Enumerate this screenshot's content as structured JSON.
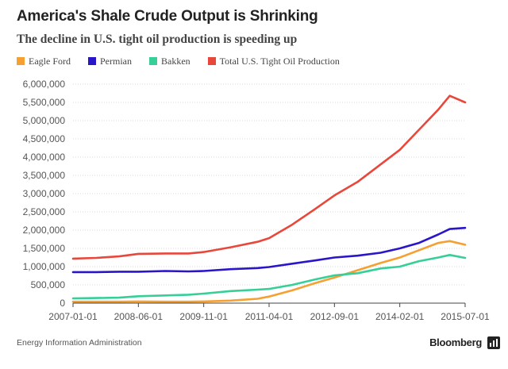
{
  "title": "America's Shale Crude Output is Shrinking",
  "subtitle": "The decline in U.S. tight oil production is speeding up",
  "source": "Energy Information Administration",
  "brand": "Bloomberg",
  "brand_icon": "bloomberg-chart-icon",
  "chart_data": {
    "type": "line",
    "x": [
      "2007-01",
      "2007-07",
      "2008-01",
      "2008-06",
      "2009-01",
      "2009-07",
      "2009-11",
      "2010-06",
      "2011-01",
      "2011-04",
      "2011-10",
      "2012-04",
      "2012-09",
      "2013-03",
      "2013-09",
      "2014-02",
      "2014-07",
      "2014-12",
      "2015-03",
      "2015-07"
    ],
    "series": [
      {
        "name": "Eagle Ford",
        "color": "#f5a031",
        "values": [
          40000,
          40000,
          40000,
          45000,
          40000,
          40000,
          45000,
          70000,
          120000,
          180000,
          350000,
          550000,
          700000,
          900000,
          1100000,
          1250000,
          1450000,
          1650000,
          1700000,
          1600000
        ]
      },
      {
        "name": "Permian",
        "color": "#2a16c9",
        "values": [
          850000,
          850000,
          860000,
          860000,
          880000,
          870000,
          880000,
          930000,
          960000,
          990000,
          1080000,
          1170000,
          1250000,
          1300000,
          1380000,
          1500000,
          1650000,
          1880000,
          2030000,
          2060000
        ]
      },
      {
        "name": "Bakken",
        "color": "#35cf97",
        "values": [
          130000,
          140000,
          150000,
          190000,
          210000,
          230000,
          260000,
          330000,
          370000,
          390000,
          500000,
          650000,
          760000,
          820000,
          950000,
          1000000,
          1150000,
          1250000,
          1320000,
          1240000
        ]
      },
      {
        "name": "Total U.S. Tight Oil Production",
        "color": "#e8483c",
        "values": [
          1220000,
          1240000,
          1280000,
          1350000,
          1360000,
          1360000,
          1400000,
          1530000,
          1680000,
          1780000,
          2150000,
          2580000,
          2950000,
          3320000,
          3800000,
          4200000,
          4750000,
          5300000,
          5680000,
          5500000
        ]
      }
    ],
    "yticks": [
      0,
      500000,
      1000000,
      1500000,
      2000000,
      2500000,
      3000000,
      3500000,
      4000000,
      4500000,
      5000000,
      5500000,
      6000000
    ],
    "ytick_labels": [
      "0",
      "500,000",
      "1,000,000",
      "1,500,000",
      "2,000,000",
      "2,500,000",
      "3,000,000",
      "3,500,000",
      "4,000,000",
      "4,500,000",
      "5,000,000",
      "5,500,000",
      "6,000,000"
    ],
    "xtick_labels": [
      "2007-01-01",
      "2008-06-01",
      "2009-11-01",
      "2011-04-01",
      "2012-09-01",
      "2014-02-01",
      "2015-07-01"
    ],
    "xlabel": "",
    "ylabel": "",
    "ylim": [
      0,
      6000000
    ],
    "xlim": [
      "2007-01",
      "2015-07"
    ],
    "grid": true,
    "legend": "top"
  }
}
